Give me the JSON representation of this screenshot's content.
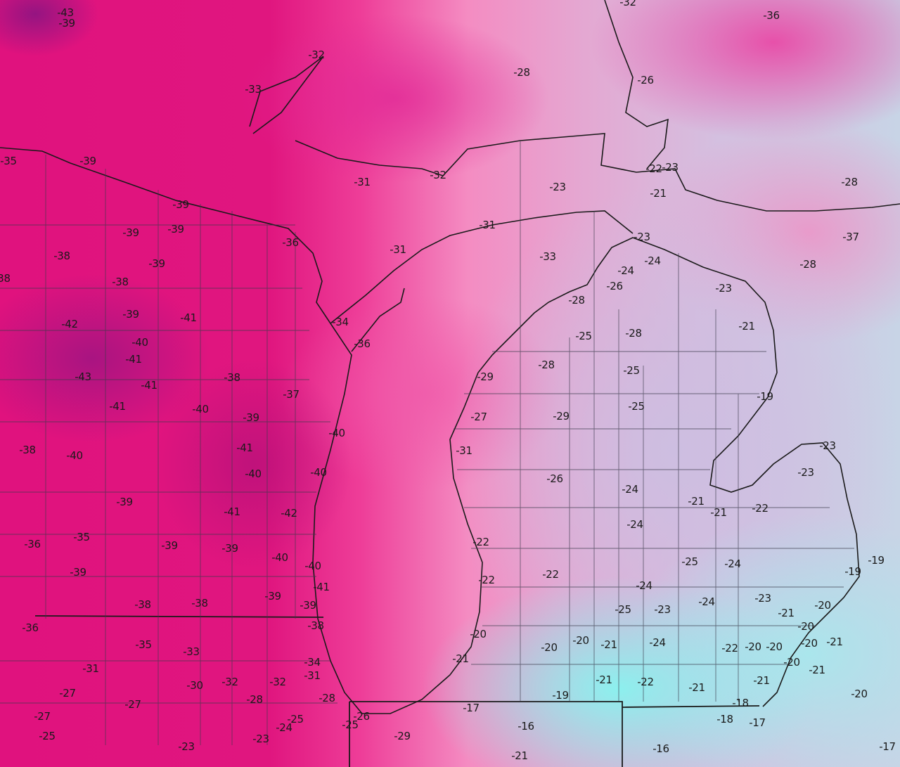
{
  "map": {
    "type": "temperature contour map",
    "colors": {
      "coldest": "#a0107a",
      "very_cold": "#e0127e",
      "cold": "#f48cc2",
      "mild": "#d4c0e0",
      "warmest": "#8ef0ee",
      "outline": "#1a1a1a"
    }
  },
  "labels": [
    "-43",
    "-39",
    "-32",
    "-36",
    "-32",
    "-28",
    "-26",
    "-33",
    "-35",
    "-39",
    "-31",
    "-32",
    "-22",
    "-23",
    "-23",
    "-21",
    "-28",
    "-39",
    "-39",
    "-39",
    "-36",
    "-31",
    "-31",
    "-23",
    "-33",
    "-37",
    "-38",
    "-39",
    "-24",
    "-24",
    "-28",
    "-38",
    "-38",
    "-26",
    "-23",
    "-28",
    "-39",
    "-41",
    "-42",
    "-34",
    "-21",
    "-25",
    "-28",
    "-40",
    "-36",
    "-41",
    "-28",
    "-43",
    "-38",
    "-29",
    "-25",
    "-41",
    "-37",
    "-19",
    "-41",
    "-40",
    "-25",
    "-39",
    "-27",
    "-29",
    "-40",
    "-41",
    "-23",
    "-38",
    "-40",
    "-31",
    "-40",
    "-40",
    "-23",
    "-26",
    "-24",
    "-39",
    "-41",
    "-42",
    "-21",
    "-21",
    "-22",
    "-24",
    "-36",
    "-35",
    "-39",
    "-39",
    "-22",
    "-40",
    "-25",
    "-24",
    "-19",
    "-19",
    "-40",
    "-39",
    "-22",
    "-22",
    "-41",
    "-24",
    "-39",
    "-38",
    "-38",
    "-39",
    "-25",
    "-23",
    "-24",
    "-23",
    "-21",
    "-20",
    "-36",
    "-38",
    "-20",
    "-20",
    "-35",
    "-33",
    "-20",
    "-20",
    "-21",
    "-24",
    "-22",
    "-20",
    "-20",
    "-20",
    "-21",
    "-21",
    "-31",
    "-34",
    "-31",
    "-20",
    "-21",
    "-30",
    "-32",
    "-32",
    "-21",
    "-22",
    "-21",
    "-21",
    "-27",
    "-27",
    "-28",
    "-28",
    "-19",
    "-18",
    "-20",
    "-27",
    "-25",
    "-26",
    "-25",
    "-24",
    "-17",
    "-16",
    "-18",
    "-17",
    "-25",
    "-29",
    "-23",
    "-23",
    "-16",
    "-17",
    "-21"
  ]
}
